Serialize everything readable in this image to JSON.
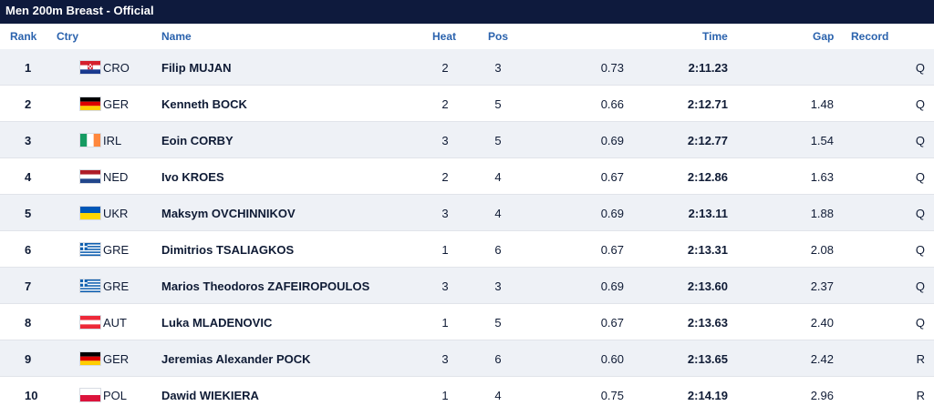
{
  "title": "Men 200m Breast  -  Official",
  "columns": {
    "rank": "Rank",
    "ctry": "Ctry",
    "name": "Name",
    "heat": "Heat",
    "pos": "Pos",
    "time": "Time",
    "gap": "Gap",
    "record": "Record"
  },
  "rows": [
    {
      "rank": "1",
      "flag": "flag-cro-icon",
      "ctry": "CRO",
      "name": "Filip MUJAN",
      "heat": "2",
      "pos": "3",
      "rt": "0.73",
      "time": "2:11.23",
      "gap": "",
      "q": "Q"
    },
    {
      "rank": "2",
      "flag": "flag-ger-icon",
      "ctry": "GER",
      "name": "Kenneth BOCK",
      "heat": "2",
      "pos": "5",
      "rt": "0.66",
      "time": "2:12.71",
      "gap": "1.48",
      "q": "Q"
    },
    {
      "rank": "3",
      "flag": "flag-irl-icon",
      "ctry": "IRL",
      "name": "Eoin CORBY",
      "heat": "3",
      "pos": "5",
      "rt": "0.69",
      "time": "2:12.77",
      "gap": "1.54",
      "q": "Q"
    },
    {
      "rank": "4",
      "flag": "flag-ned-icon",
      "ctry": "NED",
      "name": "Ivo KROES",
      "heat": "2",
      "pos": "4",
      "rt": "0.67",
      "time": "2:12.86",
      "gap": "1.63",
      "q": "Q"
    },
    {
      "rank": "5",
      "flag": "flag-ukr-icon",
      "ctry": "UKR",
      "name": "Maksym OVCHINNIKOV",
      "heat": "3",
      "pos": "4",
      "rt": "0.69",
      "time": "2:13.11",
      "gap": "1.88",
      "q": "Q"
    },
    {
      "rank": "6",
      "flag": "flag-gre-icon",
      "ctry": "GRE",
      "name": "Dimitrios TSALIAGKOS",
      "heat": "1",
      "pos": "6",
      "rt": "0.67",
      "time": "2:13.31",
      "gap": "2.08",
      "q": "Q"
    },
    {
      "rank": "7",
      "flag": "flag-gre-icon",
      "ctry": "GRE",
      "name": "Marios Theodoros ZAFEIROPOULOS",
      "heat": "3",
      "pos": "3",
      "rt": "0.69",
      "time": "2:13.60",
      "gap": "2.37",
      "q": "Q"
    },
    {
      "rank": "8",
      "flag": "flag-aut-icon",
      "ctry": "AUT",
      "name": "Luka MLADENOVIC",
      "heat": "1",
      "pos": "5",
      "rt": "0.67",
      "time": "2:13.63",
      "gap": "2.40",
      "q": "Q"
    },
    {
      "rank": "9",
      "flag": "flag-ger-icon",
      "ctry": "GER",
      "name": "Jeremias Alexander POCK",
      "heat": "3",
      "pos": "6",
      "rt": "0.60",
      "time": "2:13.65",
      "gap": "2.42",
      "q": "R"
    },
    {
      "rank": "10",
      "flag": "flag-pol-icon",
      "ctry": "POL",
      "name": "Dawid WIEKIERA",
      "heat": "1",
      "pos": "4",
      "rt": "0.75",
      "time": "2:14.19",
      "gap": "2.96",
      "q": "R"
    }
  ],
  "colors": {
    "title_bg": "#0e1a3d",
    "header_text": "#2a62ad",
    "row_alt": "#eef1f6"
  }
}
